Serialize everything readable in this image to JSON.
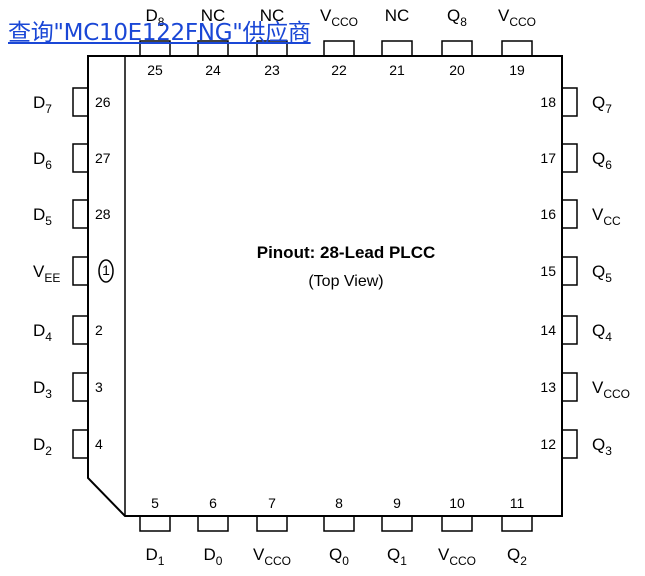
{
  "link_text": "查询\"MC10E122FNG\"供应商",
  "title": "Pinout: 28-Lead PLCC",
  "subtitle": "(Top View)",
  "pin_one_marker": "1",
  "pins": {
    "top": [
      {
        "num": "25",
        "signal": "D",
        "sub": "8"
      },
      {
        "num": "24",
        "signal": "NC",
        "sub": ""
      },
      {
        "num": "23",
        "signal": "NC",
        "sub": ""
      },
      {
        "num": "22",
        "signal": "V",
        "sub": "CCO"
      },
      {
        "num": "21",
        "signal": "NC",
        "sub": ""
      },
      {
        "num": "20",
        "signal": "Q",
        "sub": "8"
      },
      {
        "num": "19",
        "signal": "V",
        "sub": "CCO"
      }
    ],
    "left": [
      {
        "num": "26",
        "signal": "D",
        "sub": "7"
      },
      {
        "num": "27",
        "signal": "D",
        "sub": "6"
      },
      {
        "num": "28",
        "signal": "D",
        "sub": "5"
      },
      {
        "num": "1",
        "signal": "V",
        "sub": "EE"
      },
      {
        "num": "2",
        "signal": "D",
        "sub": "4"
      },
      {
        "num": "3",
        "signal": "D",
        "sub": "3"
      },
      {
        "num": "4",
        "signal": "D",
        "sub": "2"
      }
    ],
    "right": [
      {
        "num": "18",
        "signal": "Q",
        "sub": "7"
      },
      {
        "num": "17",
        "signal": "Q",
        "sub": "6"
      },
      {
        "num": "16",
        "signal": "V",
        "sub": "CC"
      },
      {
        "num": "15",
        "signal": "Q",
        "sub": "5"
      },
      {
        "num": "14",
        "signal": "Q",
        "sub": "4"
      },
      {
        "num": "13",
        "signal": "V",
        "sub": "CCO"
      },
      {
        "num": "12",
        "signal": "Q",
        "sub": "3"
      }
    ],
    "bottom": [
      {
        "num": "5",
        "signal": "D",
        "sub": "1"
      },
      {
        "num": "6",
        "signal": "D",
        "sub": "0"
      },
      {
        "num": "7",
        "signal": "V",
        "sub": "CCO"
      },
      {
        "num": "8",
        "signal": "Q",
        "sub": "0"
      },
      {
        "num": "9",
        "signal": "Q",
        "sub": "1"
      },
      {
        "num": "10",
        "signal": "V",
        "sub": "CCO"
      },
      {
        "num": "11",
        "signal": "Q",
        "sub": "2"
      }
    ]
  },
  "colors": {
    "stroke": "#000000",
    "link": "#1a47d6",
    "background": "#ffffff"
  }
}
